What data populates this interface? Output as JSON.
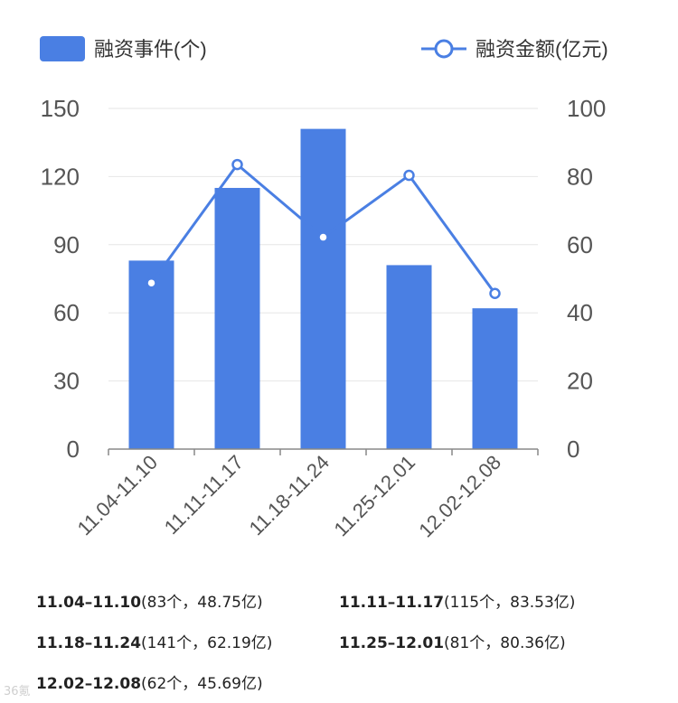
{
  "chart_data": {
    "type": "bar",
    "categories": [
      "11.04-11.10",
      "11.11-11.17",
      "11.18-11.24",
      "11.25-12.01",
      "12.02-12.08"
    ],
    "series": [
      {
        "name": "融资事件(个)",
        "type": "bar",
        "axis": "left",
        "values": [
          83,
          115,
          141,
          81,
          62
        ],
        "color": "#4a7fe3"
      },
      {
        "name": "融资金额(亿元)",
        "type": "line",
        "axis": "right",
        "values": [
          48.75,
          83.53,
          62.19,
          80.36,
          45.69
        ],
        "color": "#4a7fe3"
      }
    ],
    "left_axis": {
      "ticks": [
        "0",
        "30",
        "60",
        "90",
        "120",
        "150"
      ],
      "ylim": [
        0,
        150
      ]
    },
    "right_axis": {
      "ticks": [
        "0",
        "20",
        "40",
        "60",
        "80",
        "100"
      ],
      "ylim": [
        0,
        100
      ]
    },
    "grid": true,
    "legend": "top"
  },
  "summary": [
    {
      "period": "11.04–11.10",
      "detail": "(83个，48.75亿)"
    },
    {
      "period": "11.11–11.17",
      "detail": "(115个，83.53亿)"
    },
    {
      "period": "11.18–11.24",
      "detail": "(141个，62.19亿)"
    },
    {
      "period": "11.25–12.01",
      "detail": "(81个，80.36亿)"
    },
    {
      "period": "12.02–12.08",
      "detail": "(62个，45.69亿)"
    }
  ],
  "watermark": "36氪"
}
